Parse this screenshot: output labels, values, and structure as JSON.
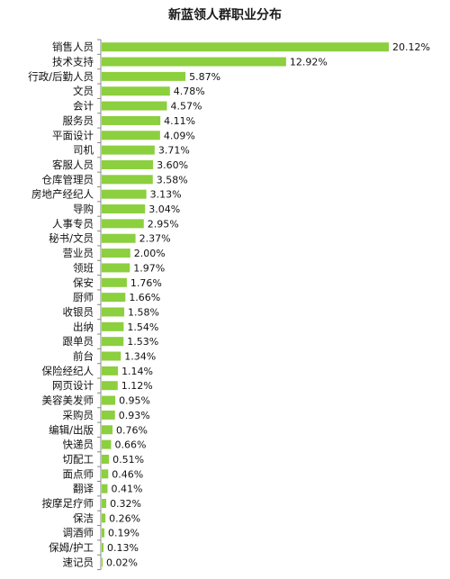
{
  "chart_data": {
    "type": "bar",
    "orientation": "horizontal",
    "title": "新蓝领人群职业分布",
    "value_suffix": "%",
    "xlim": [
      0,
      21
    ],
    "bar_color": "#8ccf3f",
    "categories": [
      "销售人员",
      "技术支持",
      "行政/后勤人员",
      "文员",
      "会计",
      "服务员",
      "平面设计",
      "司机",
      "客服人员",
      "仓库管理员",
      "房地产经纪人",
      "导购",
      "人事专员",
      "秘书/文员",
      "营业员",
      "领班",
      "保安",
      "厨师",
      "收银员",
      "出纳",
      "跟单员",
      "前台",
      "保险经纪人",
      "网页设计",
      "美容美发师",
      "采购员",
      "编辑/出版",
      "快递员",
      "切配工",
      "面点师",
      "翻译",
      "按摩足疗师",
      "保洁",
      "调酒师",
      "保姆/护工",
      "速记员"
    ],
    "values": [
      20.12,
      12.92,
      5.87,
      4.78,
      4.57,
      4.11,
      4.09,
      3.71,
      3.6,
      3.58,
      3.13,
      3.04,
      2.95,
      2.37,
      2.0,
      1.97,
      1.76,
      1.66,
      1.58,
      1.54,
      1.53,
      1.34,
      1.14,
      1.12,
      0.95,
      0.93,
      0.76,
      0.66,
      0.51,
      0.46,
      0.41,
      0.32,
      0.26,
      0.19,
      0.13,
      0.02
    ],
    "value_labels": [
      "20.12%",
      "12.92%",
      "5.87%",
      "4.78%",
      "4.57%",
      "4.11%",
      "4.09%",
      "3.71%",
      "3.60%",
      "3.58%",
      "3.13%",
      "3.04%",
      "2.95%",
      "2.37%",
      "2.00%",
      "1.97%",
      "1.76%",
      "1.66%",
      "1.58%",
      "1.54%",
      "1.53%",
      "1.34%",
      "1.14%",
      "1.12%",
      "0.95%",
      "0.93%",
      "0.76%",
      "0.66%",
      "0.51%",
      "0.46%",
      "0.41%",
      "0.32%",
      "0.26%",
      "0.19%",
      "0.13%",
      "0.02%"
    ]
  }
}
